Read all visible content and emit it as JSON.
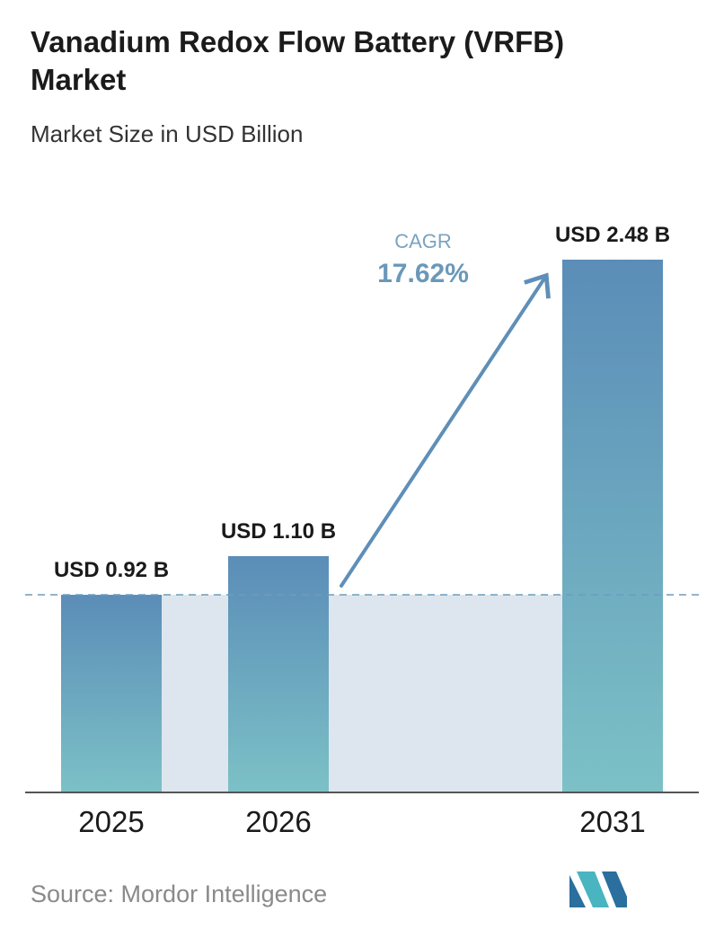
{
  "header": {
    "title": "Vanadium Redox Flow Battery (VRFB) Market",
    "subtitle": "Market Size in USD Billion"
  },
  "cagr": {
    "label": "CAGR",
    "value": "17.62%"
  },
  "footer": {
    "source": "Source: Mordor Intelligence",
    "logo_icon": "mordor-intelligence-logo-icon"
  },
  "colors": {
    "bar_top": "#5b8db8",
    "bar_bottom": "#7cc1c6",
    "band": "#dde6ee",
    "dashed_line": "#6f9bbd",
    "arrow": "#5f8fb8",
    "axis": "#555555"
  },
  "chart_data": {
    "type": "bar",
    "categories": [
      "2025",
      "2026",
      "2031"
    ],
    "values": [
      0.92,
      1.1,
      2.48
    ],
    "value_labels": [
      "USD 0.92 B",
      "USD 1.10 B",
      "USD 2.48 B"
    ],
    "title": "Vanadium Redox Flow Battery (VRFB) Market",
    "subtitle": "Market Size in USD Billion",
    "xlabel": "",
    "ylabel": "",
    "ylim": [
      0,
      2.6
    ],
    "grid": false,
    "reference_line_value": 0.92
  }
}
